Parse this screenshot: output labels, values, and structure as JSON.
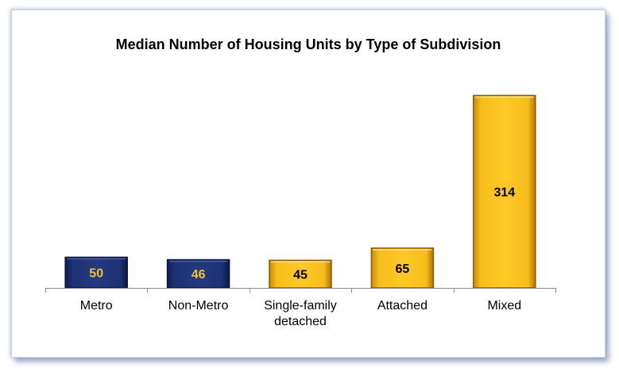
{
  "chart_data": {
    "type": "bar",
    "title": "Median Number of Housing Units by Type of Subdivision",
    "categories": [
      [
        "Metro"
      ],
      [
        "Non-Metro"
      ],
      [
        "Single-family",
        "detached"
      ],
      [
        "Attached"
      ],
      [
        "Mixed"
      ]
    ],
    "values": [
      50,
      46,
      45,
      65,
      314
    ],
    "bar_colors": [
      "#1f3575",
      "#1f3575",
      "#f6b817",
      "#f6b817",
      "#f6b817"
    ],
    "label_colors": [
      "#f6c02a",
      "#f6c02a",
      "#000000",
      "#000000",
      "#000000"
    ],
    "ylim": [
      0,
      330
    ],
    "grid": false,
    "legend": "none",
    "xlabel": "",
    "ylabel": ""
  }
}
